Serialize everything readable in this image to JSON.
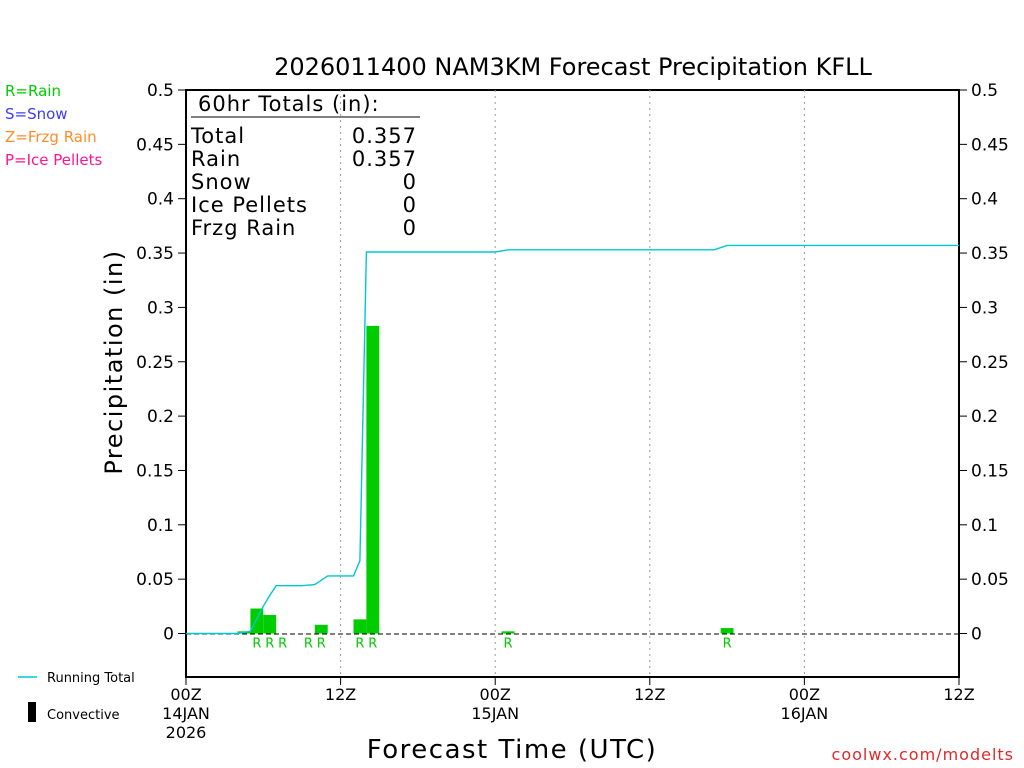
{
  "chart_data": {
    "type": "bar",
    "title": "2026011400 NAM3KM Forecast Precipitation KFLL",
    "xlabel": "Forecast Time (UTC)",
    "ylabel": "Precipitation (in)",
    "ylim": [
      -0.04,
      0.5
    ],
    "y_ticks": [
      "0.5",
      "0.45",
      "0.4",
      "0.35",
      "0.3",
      "0.25",
      "0.2",
      "0.15",
      "0.1",
      "0.05",
      "0"
    ],
    "x_unit": "forecast hour",
    "xlim": [
      0,
      60
    ],
    "x_ticks": [
      {
        "hour": 0,
        "line1": "00Z",
        "line2": "14JAN",
        "line3": "2026"
      },
      {
        "hour": 12,
        "line1": "12Z",
        "line2": "",
        "line3": ""
      },
      {
        "hour": 24,
        "line1": "00Z",
        "line2": "15JAN",
        "line3": ""
      },
      {
        "hour": 36,
        "line1": "12Z",
        "line2": "",
        "line3": ""
      },
      {
        "hour": 48,
        "line1": "00Z",
        "line2": "16JAN",
        "line3": ""
      },
      {
        "hour": 60,
        "line1": "12Z",
        "line2": "",
        "line3": ""
      }
    ],
    "grid": "dotted vertical lines",
    "precip_type_legend": [
      {
        "label": "R=Rain",
        "color": "#00cc00"
      },
      {
        "label": "S=Snow",
        "color": "#3c3cff"
      },
      {
        "label": "Z=Frzg Rain",
        "color": "#ff8c28"
      },
      {
        "label": "P=Ice Pellets",
        "color": "#ff1493"
      }
    ],
    "series_legend": [
      {
        "label": "Running Total",
        "color": "#00c8d2"
      },
      {
        "label": "Convective",
        "color": "#000000"
      }
    ],
    "bars": {
      "color": "#00cc00",
      "points": [
        {
          "hour": 4.5,
          "value": 0.002,
          "marker": ""
        },
        {
          "hour": 5.5,
          "value": 0.023,
          "marker": "R"
        },
        {
          "hour": 6.5,
          "value": 0.017,
          "marker": "R"
        },
        {
          "hour": 7.5,
          "value": 0.0,
          "marker": "R"
        },
        {
          "hour": 9.5,
          "value": 0.0,
          "marker": "R"
        },
        {
          "hour": 10.5,
          "value": 0.008,
          "marker": "R"
        },
        {
          "hour": 13.5,
          "value": 0.013,
          "marker": "R"
        },
        {
          "hour": 14.5,
          "value": 0.283,
          "marker": "R"
        },
        {
          "hour": 25,
          "value": 0.002,
          "marker": "R"
        },
        {
          "hour": 42,
          "value": 0.005,
          "marker": "R"
        }
      ]
    },
    "running_total": {
      "color": "#00c8d2",
      "x": [
        0,
        3,
        4,
        5,
        6,
        6.5,
        7,
        8,
        9,
        10,
        11,
        12,
        13,
        13.5,
        14,
        15,
        24,
        25,
        40,
        41,
        42,
        60
      ],
      "y": [
        0,
        0,
        0,
        0.002,
        0.025,
        0.035,
        0.044,
        0.044,
        0.044,
        0.045,
        0.053,
        0.053,
        0.053,
        0.067,
        0.351,
        0.351,
        0.351,
        0.353,
        0.353,
        0.353,
        0.357,
        0.357
      ]
    },
    "totals_box": {
      "heading": "60hr Totals (in):",
      "rows": [
        {
          "label": "Total",
          "value": "0.357"
        },
        {
          "label": "Rain",
          "value": "0.357"
        },
        {
          "label": "Snow",
          "value": "0"
        },
        {
          "label": "Ice Pellets",
          "value": "0"
        },
        {
          "label": "Frzg Rain",
          "value": "0"
        }
      ]
    },
    "credit": "coolwx.com/modelts"
  }
}
